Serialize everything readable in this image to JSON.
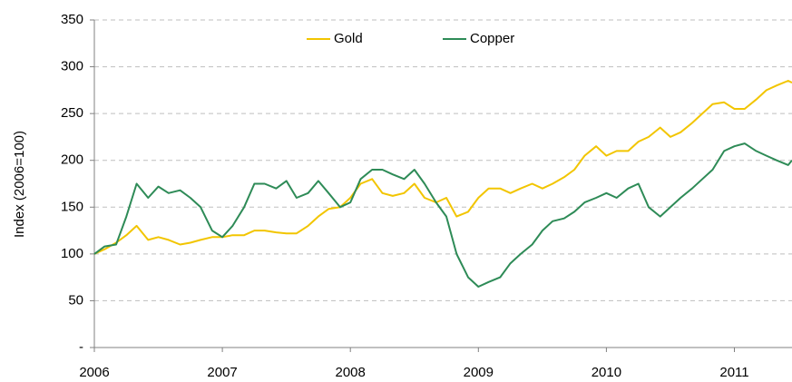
{
  "chart_data": {
    "type": "line",
    "y_label": "Index (2006=100)",
    "xlim": [
      2006,
      2011.45
    ],
    "xticks": [
      2006,
      2007,
      2008,
      2009,
      2010,
      2011
    ],
    "ylim": [
      0,
      350
    ],
    "yticks": [
      {
        "value": 0,
        "label": "-"
      },
      50,
      100,
      150,
      200,
      250,
      300,
      350
    ],
    "grid": true,
    "legend": "top",
    "x": [
      2006,
      2006.08,
      2006.17,
      2006.25,
      2006.33,
      2006.42,
      2006.5,
      2006.58,
      2006.67,
      2006.75,
      2006.83,
      2006.92,
      2007,
      2007.08,
      2007.17,
      2007.25,
      2007.33,
      2007.42,
      2007.5,
      2007.58,
      2007.67,
      2007.75,
      2007.83,
      2007.92,
      2008,
      2008.08,
      2008.17,
      2008.25,
      2008.33,
      2008.42,
      2008.5,
      2008.58,
      2008.67,
      2008.75,
      2008.83,
      2008.92,
      2009,
      2009.08,
      2009.17,
      2009.25,
      2009.33,
      2009.42,
      2009.5,
      2009.58,
      2009.67,
      2009.75,
      2009.83,
      2009.92,
      2010,
      2010.08,
      2010.17,
      2010.25,
      2010.33,
      2010.42,
      2010.5,
      2010.58,
      2010.67,
      2010.75,
      2010.83,
      2010.92,
      2011,
      2011.08,
      2011.17,
      2011.25,
      2011.33,
      2011.42,
      2011.45
    ],
    "series": [
      {
        "name": "Gold",
        "color": "#f2c500",
        "values": [
          100,
          105,
          112,
          120,
          130,
          115,
          118,
          115,
          110,
          112,
          115,
          118,
          118,
          120,
          120,
          125,
          125,
          123,
          122,
          122,
          130,
          140,
          148,
          150,
          160,
          175,
          180,
          165,
          162,
          165,
          175,
          160,
          155,
          160,
          140,
          145,
          160,
          170,
          170,
          165,
          170,
          175,
          170,
          175,
          182,
          190,
          205,
          215,
          205,
          210,
          210,
          220,
          225,
          235,
          225,
          230,
          240,
          250,
          260,
          262,
          255,
          255,
          265,
          275,
          280,
          285,
          283
        ]
      },
      {
        "name": "Copper",
        "color": "#2e8b57",
        "values": [
          100,
          108,
          110,
          140,
          175,
          160,
          172,
          165,
          168,
          160,
          150,
          125,
          118,
          130,
          150,
          175,
          175,
          170,
          178,
          160,
          165,
          178,
          165,
          150,
          155,
          180,
          190,
          190,
          185,
          180,
          190,
          175,
          155,
          140,
          100,
          75,
          65,
          70,
          75,
          90,
          100,
          110,
          125,
          135,
          138,
          145,
          155,
          160,
          165,
          160,
          170,
          175,
          150,
          140,
          150,
          160,
          170,
          180,
          190,
          210,
          215,
          218,
          210,
          205,
          200,
          195,
          200
        ]
      }
    ]
  }
}
